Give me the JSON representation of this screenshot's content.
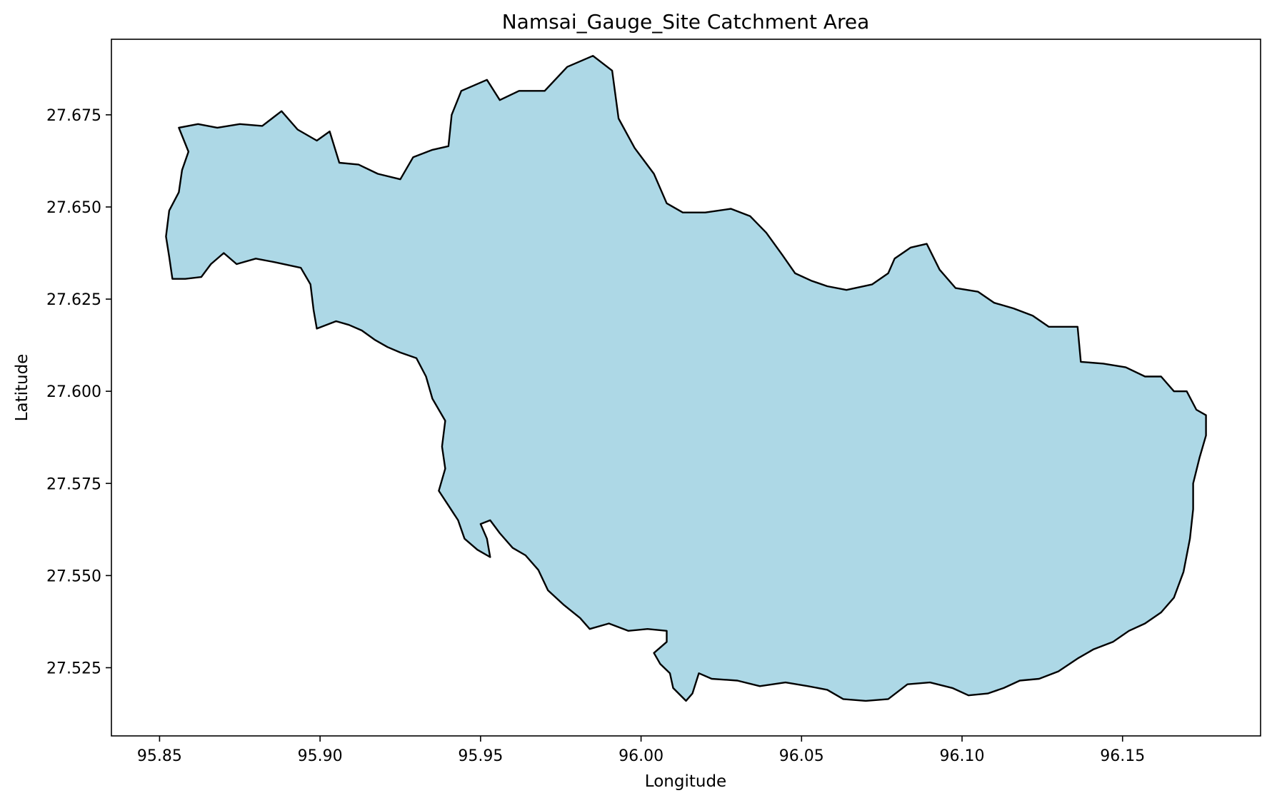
{
  "chart_data": {
    "type": "map",
    "title": "Namsai_Gauge_Site Catchment Area",
    "xlabel": "Longitude",
    "ylabel": "Latitude",
    "xlim": [
      95.835,
      96.193
    ],
    "ylim": [
      27.5065,
      27.6955
    ],
    "xticks": [
      95.85,
      95.9,
      95.95,
      96.0,
      96.05,
      96.1,
      96.15
    ],
    "xtick_labels": [
      "95.85",
      "95.90",
      "95.95",
      "96.00",
      "96.05",
      "96.10",
      "96.15"
    ],
    "yticks": [
      27.525,
      27.55,
      27.575,
      27.6,
      27.625,
      27.65,
      27.675
    ],
    "ytick_labels": [
      "27.525",
      "27.550",
      "27.575",
      "27.600",
      "27.625",
      "27.650",
      "27.675"
    ],
    "grid": false,
    "fill_color": "#add8e6",
    "edge_color": "#000000",
    "catchment_boundary": [
      [
        95.856,
        27.6715
      ],
      [
        95.862,
        27.6725
      ],
      [
        95.868,
        27.6715
      ],
      [
        95.875,
        27.6725
      ],
      [
        95.882,
        27.672
      ],
      [
        95.888,
        27.676
      ],
      [
        95.893,
        27.671
      ],
      [
        95.899,
        27.668
      ],
      [
        95.903,
        27.6705
      ],
      [
        95.906,
        27.662
      ],
      [
        95.912,
        27.6615
      ],
      [
        95.918,
        27.659
      ],
      [
        95.925,
        27.6575
      ],
      [
        95.929,
        27.6635
      ],
      [
        95.935,
        27.6655
      ],
      [
        95.94,
        27.6665
      ],
      [
        95.941,
        27.675
      ],
      [
        95.944,
        27.6815
      ],
      [
        95.952,
        27.6845
      ],
      [
        95.956,
        27.679
      ],
      [
        95.962,
        27.6815
      ],
      [
        95.97,
        27.6815
      ],
      [
        95.977,
        27.688
      ],
      [
        95.985,
        27.691
      ],
      [
        95.991,
        27.687
      ],
      [
        95.993,
        27.674
      ],
      [
        95.998,
        27.666
      ],
      [
        96.004,
        27.659
      ],
      [
        96.008,
        27.651
      ],
      [
        96.013,
        27.6485
      ],
      [
        96.02,
        27.6485
      ],
      [
        96.028,
        27.6495
      ],
      [
        96.034,
        27.6475
      ],
      [
        96.039,
        27.643
      ],
      [
        96.044,
        27.637
      ],
      [
        96.048,
        27.632
      ],
      [
        96.053,
        27.63
      ],
      [
        96.058,
        27.6285
      ],
      [
        96.064,
        27.6275
      ],
      [
        96.072,
        27.629
      ],
      [
        96.077,
        27.632
      ],
      [
        96.079,
        27.636
      ],
      [
        96.084,
        27.639
      ],
      [
        96.089,
        27.64
      ],
      [
        96.093,
        27.633
      ],
      [
        96.098,
        27.628
      ],
      [
        96.105,
        27.627
      ],
      [
        96.11,
        27.624
      ],
      [
        96.116,
        27.6225
      ],
      [
        96.122,
        27.6205
      ],
      [
        96.127,
        27.6175
      ],
      [
        96.136,
        27.6175
      ],
      [
        96.137,
        27.608
      ],
      [
        96.144,
        27.6075
      ],
      [
        96.151,
        27.6065
      ],
      [
        96.157,
        27.604
      ],
      [
        96.162,
        27.604
      ],
      [
        96.166,
        27.6
      ],
      [
        96.17,
        27.6
      ],
      [
        96.173,
        27.595
      ],
      [
        96.176,
        27.5935
      ],
      [
        96.176,
        27.588
      ],
      [
        96.174,
        27.582
      ],
      [
        96.172,
        27.575
      ],
      [
        96.172,
        27.568
      ],
      [
        96.171,
        27.56
      ],
      [
        96.169,
        27.551
      ],
      [
        96.166,
        27.544
      ],
      [
        96.162,
        27.54
      ],
      [
        96.157,
        27.537
      ],
      [
        96.152,
        27.535
      ],
      [
        96.147,
        27.532
      ],
      [
        96.141,
        27.53
      ],
      [
        96.136,
        27.5275
      ],
      [
        96.13,
        27.524
      ],
      [
        96.124,
        27.522
      ],
      [
        96.118,
        27.5215
      ],
      [
        96.113,
        27.5195
      ],
      [
        96.108,
        27.518
      ],
      [
        96.102,
        27.5175
      ],
      [
        96.097,
        27.5195
      ],
      [
        96.09,
        27.521
      ],
      [
        96.083,
        27.5205
      ],
      [
        96.077,
        27.5165
      ],
      [
        96.07,
        27.516
      ],
      [
        96.063,
        27.5165
      ],
      [
        96.058,
        27.519
      ],
      [
        96.052,
        27.52
      ],
      [
        96.045,
        27.521
      ],
      [
        96.037,
        27.52
      ],
      [
        96.03,
        27.5215
      ],
      [
        96.022,
        27.522
      ],
      [
        96.018,
        27.5235
      ],
      [
        96.016,
        27.518
      ],
      [
        96.014,
        27.516
      ],
      [
        96.01,
        27.5195
      ],
      [
        96.009,
        27.5235
      ],
      [
        96.006,
        27.526
      ],
      [
        96.004,
        27.529
      ],
      [
        96.008,
        27.532
      ],
      [
        96.008,
        27.535
      ],
      [
        96.002,
        27.5355
      ],
      [
        95.996,
        27.535
      ],
      [
        95.99,
        27.537
      ],
      [
        95.984,
        27.5355
      ],
      [
        95.981,
        27.5385
      ],
      [
        95.976,
        27.542
      ],
      [
        95.971,
        27.546
      ],
      [
        95.968,
        27.5515
      ],
      [
        95.964,
        27.5555
      ],
      [
        95.96,
        27.5575
      ],
      [
        95.956,
        27.5615
      ],
      [
        95.953,
        27.565
      ],
      [
        95.95,
        27.564
      ],
      [
        95.952,
        27.56
      ],
      [
        95.953,
        27.555
      ],
      [
        95.949,
        27.557
      ],
      [
        95.945,
        27.56
      ],
      [
        95.943,
        27.565
      ],
      [
        95.94,
        27.569
      ],
      [
        95.937,
        27.573
      ],
      [
        95.939,
        27.579
      ],
      [
        95.938,
        27.585
      ],
      [
        95.939,
        27.592
      ],
      [
        95.935,
        27.598
      ],
      [
        95.933,
        27.604
      ],
      [
        95.93,
        27.609
      ],
      [
        95.925,
        27.6105
      ],
      [
        95.921,
        27.612
      ],
      [
        95.917,
        27.614
      ],
      [
        95.913,
        27.6165
      ],
      [
        95.909,
        27.618
      ],
      [
        95.905,
        27.619
      ],
      [
        95.899,
        27.617
      ],
      [
        95.898,
        27.622
      ],
      [
        95.897,
        27.629
      ],
      [
        95.894,
        27.6335
      ],
      [
        95.886,
        27.635
      ],
      [
        95.88,
        27.636
      ],
      [
        95.874,
        27.6345
      ],
      [
        95.87,
        27.6375
      ],
      [
        95.866,
        27.6345
      ],
      [
        95.863,
        27.631
      ],
      [
        95.858,
        27.6305
      ],
      [
        95.854,
        27.6305
      ],
      [
        95.853,
        27.6365
      ],
      [
        95.852,
        27.642
      ],
      [
        95.853,
        27.649
      ],
      [
        95.856,
        27.654
      ],
      [
        95.857,
        27.66
      ],
      [
        95.859,
        27.665
      ]
    ]
  }
}
